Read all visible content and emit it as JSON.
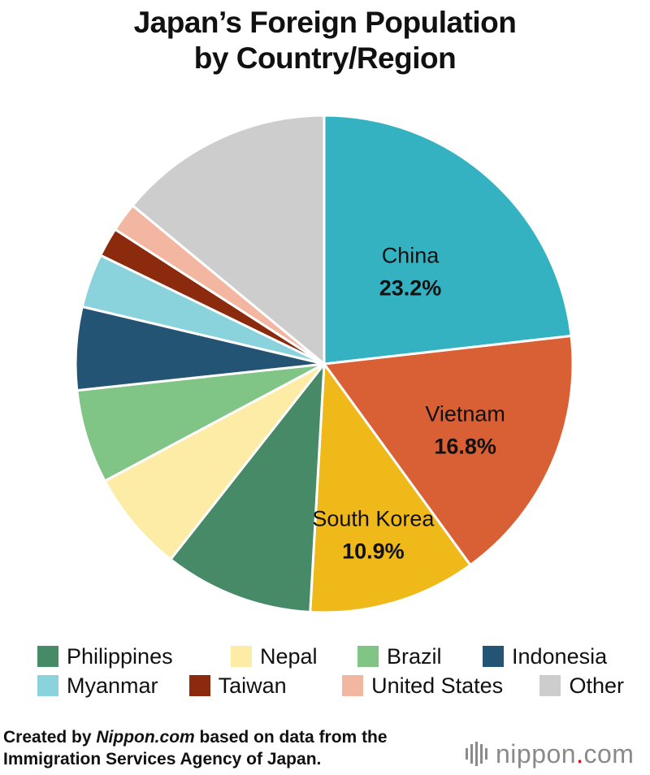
{
  "header": {
    "title_line1": "Japan’s Foreign Population",
    "title_line2": "by Country/Region"
  },
  "chart_data": {
    "type": "pie",
    "title": "Japan’s Foreign Population by Country/Region",
    "slices": [
      {
        "name": "China",
        "value": 23.2,
        "label": "23.2%",
        "color": "#35b2c1"
      },
      {
        "name": "Vietnam",
        "value": 16.8,
        "label": "16.8%",
        "color": "#d95f34"
      },
      {
        "name": "South Korea",
        "value": 10.9,
        "label": "10.9%",
        "color": "#efb91a"
      },
      {
        "name": "Philippines",
        "value": 9.7,
        "color": "#478a67"
      },
      {
        "name": "Nepal",
        "value": 6.6,
        "color": "#fdeca6"
      },
      {
        "name": "Brazil",
        "value": 6.1,
        "color": "#80c486"
      },
      {
        "name": "Indonesia",
        "value": 5.4,
        "color": "#245473"
      },
      {
        "name": "Myanmar",
        "value": 3.5,
        "color": "#8bd3dc"
      },
      {
        "name": "Taiwan",
        "value": 1.9,
        "color": "#8b2a0d"
      },
      {
        "name": "United States",
        "value": 1.9,
        "color": "#f3b7a1"
      },
      {
        "name": "Other",
        "value": 14.0,
        "color": "#cdcdcd"
      }
    ],
    "legend_position": "bottom"
  },
  "legend": {
    "rows": [
      [
        {
          "label": "Philippines",
          "color": "#478a67"
        },
        {
          "label": "Nepal",
          "color": "#fdeca6"
        },
        {
          "label": "Brazil",
          "color": "#80c486"
        },
        {
          "label": "Indonesia",
          "color": "#245473"
        }
      ],
      [
        {
          "label": "Myanmar",
          "color": "#8bd3dc"
        },
        {
          "label": "Taiwan",
          "color": "#8b2a0d"
        },
        {
          "label": "United States",
          "color": "#f3b7a1"
        },
        {
          "label": "Other",
          "color": "#cdcdcd"
        }
      ]
    ]
  },
  "footer": {
    "source_prefix": "Created by ",
    "source_brand": "Nippon.com",
    "source_suffix": " based on data from the",
    "source_line2": "Immigration Services Agency of Japan.",
    "logo_main": "nippon",
    "logo_dot": ".",
    "logo_tld": "com"
  }
}
